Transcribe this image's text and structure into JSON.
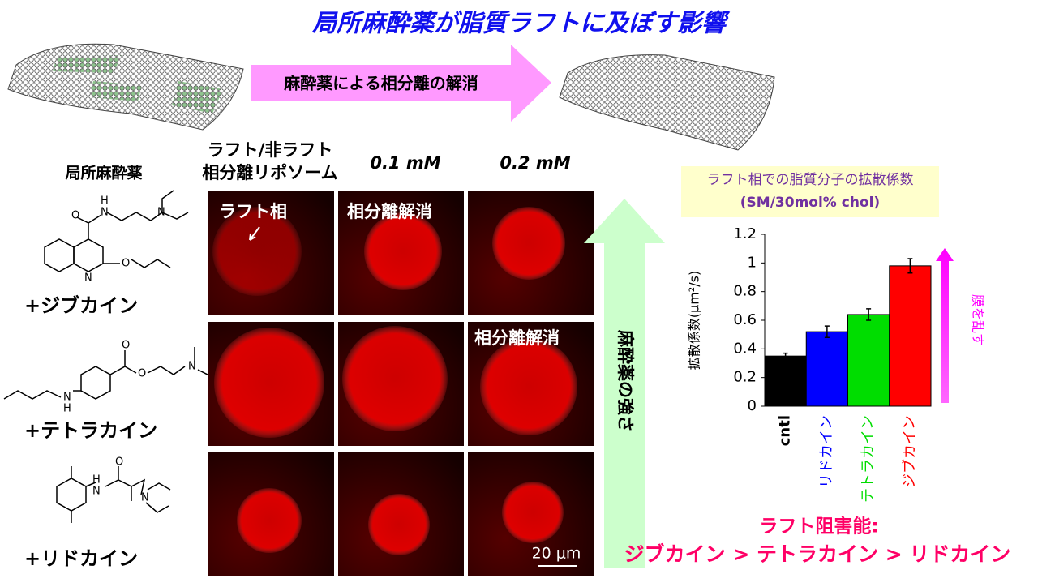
{
  "title": "局所麻酔薬が脂質ラフトに及ぼす影響",
  "arrow_label": "麻酔薬による相分離の解消",
  "headers": {
    "drug": "局所麻酔薬",
    "liposome": [
      "ラフト/非ラフト",
      "相分離リポソーム"
    ],
    "conc1": "0.1 mM",
    "conc2": "0.2 mM"
  },
  "rows": [
    "+ジブカイン",
    "+テトラカイン",
    "+リドカイン"
  ],
  "image_labels": {
    "raft": "ラフト相",
    "dissolved1": "相分離解消",
    "dissolved2": "相分離解消",
    "scale": "20 μm"
  },
  "strength_arrow": "麻酔薬の強さ",
  "structures": [
    {
      "atoms": [
        "O",
        "N",
        "N",
        "N",
        "O"
      ],
      "hydrogen": "H"
    },
    {
      "atoms": [
        "O",
        "O",
        "N",
        "N"
      ],
      "hydrogen": "H"
    },
    {
      "atoms": [
        "N",
        "O",
        "N"
      ],
      "hydrogen": "H"
    }
  ],
  "chart_data": {
    "type": "bar",
    "title": "ラフト相での脂質分子の拡散係数",
    "subtitle": "(SM/30mol% chol)",
    "y_label": "拡散係数(μm²/s)",
    "categories": [
      "cntl",
      "リドカイン",
      "テトラカイン",
      "ジブカイン"
    ],
    "values": [
      0.35,
      0.52,
      0.64,
      0.98
    ],
    "errors": [
      0.02,
      0.04,
      0.04,
      0.05
    ],
    "colors": [
      "#000000",
      "#0000ff",
      "#00dd00",
      "#ff0000"
    ],
    "ylim": [
      0,
      1.2
    ],
    "yticks": [
      0,
      0.2,
      0.4,
      0.6,
      0.8,
      1,
      1.2
    ],
    "annotation": "膜を乱す"
  },
  "conclusion": {
    "label": "ラフト阻害能:",
    "ranking": "ジブカイン > テトラカイン > リドカイン"
  }
}
